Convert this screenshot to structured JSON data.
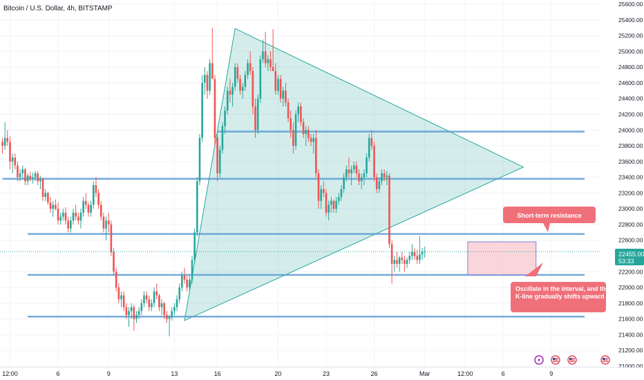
{
  "header": {
    "title": "Bitcoin / U.S. Dollar, 4h, BITSTAMP"
  },
  "price_badge": {
    "price": "22455.00",
    "countdown": "53:33"
  },
  "annotations": {
    "resistance_note": "Short-term resistance",
    "oscillation_note": "Oscillate in the interval, and the K-line gradually shifts upward"
  },
  "colors": {
    "up": "#26a69a",
    "down": "#ef5350",
    "level_line": "#5b9bd5",
    "triangle_fill": "#26a69a",
    "note_bg": "#f0707a",
    "range_fill": "#f8c8cf",
    "range_border": "#7e7be0",
    "badge": "#26a69a"
  },
  "event_icons": [
    "lightning-icon",
    "us-flag-icon",
    "us-flag-icon",
    "us-flag-icon"
  ],
  "chart_data": {
    "type": "candlestick",
    "symbol": "Bitcoin / U.S. Dollar",
    "interval": "4h",
    "exchange": "BITSTAMP",
    "ylim": [
      21000,
      25600
    ],
    "y_ticks": [
      21000,
      21200,
      21400,
      21600,
      21800,
      22000,
      22200,
      22400,
      22600,
      22800,
      23000,
      23200,
      23400,
      23600,
      23800,
      24000,
      24200,
      24400,
      24600,
      24800,
      25000,
      25200,
      25400,
      25600
    ],
    "x_ticks": [
      "12:00",
      "6",
      "9",
      "13",
      "16",
      "20",
      "23",
      "26",
      "Mar",
      "12:00",
      "6",
      "9"
    ],
    "x_tick_index": [
      3,
      22,
      42,
      68,
      85,
      109,
      128,
      147,
      167,
      183,
      198,
      217
    ],
    "candles_ohlc": [
      [
        23850,
        23900,
        23700,
        23800
      ],
      [
        23800,
        24100,
        23750,
        23900
      ],
      [
        23900,
        24000,
        23800,
        23850
      ],
      [
        23850,
        23920,
        23500,
        23600
      ],
      [
        23600,
        23700,
        23450,
        23650
      ],
      [
        23650,
        23700,
        23500,
        23550
      ],
      [
        23550,
        23600,
        23350,
        23400
      ],
      [
        23400,
        23500,
        23350,
        23450
      ],
      [
        23450,
        23550,
        23380,
        23500
      ],
      [
        23500,
        23520,
        23300,
        23350
      ],
      [
        23350,
        23450,
        23300,
        23420
      ],
      [
        23420,
        23470,
        23350,
        23380
      ],
      [
        23380,
        23460,
        23320,
        23400
      ],
      [
        23400,
        23480,
        23350,
        23450
      ],
      [
        23450,
        23480,
        23300,
        23350
      ],
      [
        23350,
        23420,
        23250,
        23380
      ],
      [
        23380,
        23400,
        23100,
        23150
      ],
      [
        23150,
        23250,
        23100,
        23200
      ],
      [
        23200,
        23220,
        23050,
        23080
      ],
      [
        23080,
        23150,
        22950,
        23000
      ],
      [
        23000,
        23100,
        22900,
        23050
      ],
      [
        23050,
        23120,
        22980,
        23000
      ],
      [
        23000,
        23080,
        22800,
        22850
      ],
      [
        22850,
        22950,
        22800,
        22900
      ],
      [
        22900,
        23000,
        22850,
        22950
      ],
      [
        22950,
        23020,
        22800,
        22850
      ],
      [
        22850,
        22900,
        22700,
        22750
      ],
      [
        22750,
        22900,
        22700,
        22850
      ],
      [
        22850,
        23000,
        22800,
        22950
      ],
      [
        22950,
        23050,
        22850,
        22900
      ],
      [
        22900,
        22950,
        22800,
        22850
      ],
      [
        22850,
        23000,
        22750,
        22950
      ],
      [
        22950,
        23150,
        22900,
        23100
      ],
      [
        23100,
        23200,
        23000,
        23050
      ],
      [
        23050,
        23080,
        22900,
        22950
      ],
      [
        22950,
        23100,
        22900,
        23050
      ],
      [
        23050,
        23350,
        23000,
        23300
      ],
      [
        23300,
        23400,
        23150,
        23200
      ],
      [
        23200,
        23250,
        23000,
        23050
      ],
      [
        23050,
        23100,
        22850,
        22900
      ],
      [
        22900,
        22950,
        22700,
        22750
      ],
      [
        22750,
        22900,
        22600,
        22850
      ],
      [
        22850,
        22950,
        22700,
        22800
      ],
      [
        22800,
        22850,
        22400,
        22450
      ],
      [
        22450,
        22500,
        22150,
        22200
      ],
      [
        22200,
        22250,
        21950,
        22000
      ],
      [
        22000,
        22050,
        21800,
        21850
      ],
      [
        21850,
        21950,
        21750,
        21900
      ],
      [
        21900,
        21950,
        21700,
        21750
      ],
      [
        21750,
        21800,
        21600,
        21650
      ],
      [
        21650,
        21750,
        21500,
        21700
      ],
      [
        21700,
        21800,
        21600,
        21750
      ],
      [
        21750,
        21780,
        21450,
        21600
      ],
      [
        21600,
        21700,
        21550,
        21650
      ],
      [
        21650,
        21750,
        21600,
        21700
      ],
      [
        21700,
        21850,
        21650,
        21800
      ],
      [
        21800,
        21950,
        21750,
        21900
      ],
      [
        21900,
        21950,
        21800,
        21850
      ],
      [
        21850,
        21900,
        21700,
        21750
      ],
      [
        21750,
        21850,
        21700,
        21800
      ],
      [
        21800,
        22000,
        21750,
        21950
      ],
      [
        21950,
        22050,
        21850,
        21900
      ],
      [
        21900,
        21920,
        21700,
        21750
      ],
      [
        21750,
        21850,
        21650,
        21800
      ],
      [
        21800,
        21820,
        21600,
        21650
      ],
      [
        21650,
        21700,
        21550,
        21600
      ],
      [
        21600,
        21650,
        21380,
        21620
      ],
      [
        21620,
        21750,
        21580,
        21700
      ],
      [
        21700,
        21800,
        21650,
        21750
      ],
      [
        21750,
        21900,
        21700,
        21850
      ],
      [
        21850,
        22050,
        21800,
        22000
      ],
      [
        22000,
        22200,
        21950,
        22150
      ],
      [
        22150,
        22250,
        22050,
        22100
      ],
      [
        22100,
        22150,
        21950,
        22000
      ],
      [
        22000,
        22150,
        21950,
        22100
      ],
      [
        22100,
        22400,
        22050,
        22350
      ],
      [
        22350,
        22750,
        22300,
        22700
      ],
      [
        22700,
        23400,
        22650,
        23350
      ],
      [
        23350,
        23950,
        23300,
        23900
      ],
      [
        23900,
        24700,
        23850,
        24600
      ],
      [
        24600,
        24800,
        24450,
        24700
      ],
      [
        24700,
        24750,
        24400,
        24500
      ],
      [
        24500,
        24900,
        24450,
        24850
      ],
      [
        24850,
        25300,
        24800,
        24650
      ],
      [
        24650,
        24700,
        23800,
        23900
      ],
      [
        23900,
        23950,
        23350,
        23450
      ],
      [
        23450,
        23800,
        23400,
        23750
      ],
      [
        23750,
        24100,
        23700,
        24050
      ],
      [
        24050,
        24300,
        23950,
        24250
      ],
      [
        24250,
        24550,
        24200,
        24500
      ],
      [
        24500,
        24650,
        24350,
        24450
      ],
      [
        24450,
        24600,
        24300,
        24550
      ],
      [
        24550,
        24850,
        24500,
        24800
      ],
      [
        24800,
        24850,
        24600,
        24650
      ],
      [
        24650,
        24700,
        24450,
        24500
      ],
      [
        24500,
        24600,
        24400,
        24550
      ],
      [
        24550,
        24750,
        24500,
        24700
      ],
      [
        24700,
        24900,
        24650,
        24850
      ],
      [
        24850,
        25000,
        24700,
        24750
      ],
      [
        24750,
        24800,
        24200,
        24300
      ],
      [
        24300,
        24400,
        23900,
        24000
      ],
      [
        24000,
        24450,
        23950,
        24400
      ],
      [
        24400,
        24950,
        24350,
        24900
      ],
      [
        24900,
        25150,
        24850,
        25000
      ],
      [
        25000,
        25250,
        24800,
        24850
      ],
      [
        24850,
        24950,
        24750,
        24900
      ],
      [
        24900,
        25000,
        24750,
        24800
      ],
      [
        24800,
        25280,
        24750,
        24750
      ],
      [
        24750,
        24850,
        24450,
        24500
      ],
      [
        24500,
        24700,
        24450,
        24650
      ],
      [
        24650,
        24700,
        24350,
        24400
      ],
      [
        24400,
        24550,
        24300,
        24500
      ],
      [
        24500,
        24600,
        24300,
        24350
      ],
      [
        24350,
        24400,
        24100,
        24150
      ],
      [
        24150,
        24250,
        23900,
        24000
      ],
      [
        24000,
        24100,
        23700,
        23800
      ],
      [
        23800,
        24250,
        23750,
        24200
      ],
      [
        24200,
        24350,
        24100,
        24300
      ],
      [
        24300,
        24350,
        24050,
        24100
      ],
      [
        24100,
        24150,
        23900,
        23950
      ],
      [
        23950,
        24050,
        23800,
        24000
      ],
      [
        24000,
        24050,
        23850,
        23900
      ],
      [
        23900,
        23950,
        23800,
        23850
      ],
      [
        23850,
        23950,
        23700,
        23900
      ],
      [
        23900,
        24000,
        23400,
        23450
      ],
      [
        23450,
        23500,
        23000,
        23100
      ],
      [
        23100,
        23300,
        23000,
        23250
      ],
      [
        23250,
        23350,
        23150,
        23200
      ],
      [
        23200,
        23250,
        22900,
        22950
      ],
      [
        22950,
        23100,
        22850,
        23050
      ],
      [
        23050,
        23150,
        22950,
        23100
      ],
      [
        23100,
        23120,
        22950,
        23000
      ],
      [
        23000,
        23150,
        22950,
        23100
      ],
      [
        23100,
        23200,
        23050,
        23150
      ],
      [
        23150,
        23300,
        23100,
        23250
      ],
      [
        23250,
        23450,
        23200,
        23400
      ],
      [
        23400,
        23550,
        23350,
        23500
      ],
      [
        23500,
        23650,
        23400,
        23450
      ],
      [
        23450,
        23550,
        23300,
        23500
      ],
      [
        23500,
        23600,
        23450,
        23550
      ],
      [
        23550,
        23600,
        23400,
        23450
      ],
      [
        23450,
        23500,
        23300,
        23350
      ],
      [
        23350,
        23450,
        23250,
        23400
      ],
      [
        23400,
        23500,
        23300,
        23450
      ],
      [
        23450,
        23700,
        23400,
        23650
      ],
      [
        23650,
        23950,
        23600,
        23900
      ],
      [
        23900,
        24000,
        23750,
        23800
      ],
      [
        23800,
        23850,
        23350,
        23400
      ],
      [
        23400,
        23450,
        23200,
        23250
      ],
      [
        23250,
        23400,
        23200,
        23350
      ],
      [
        23350,
        23500,
        23300,
        23450
      ],
      [
        23450,
        23500,
        23350,
        23400
      ],
      [
        23400,
        23480,
        23300,
        23420
      ],
      [
        23420,
        23450,
        22500,
        22550
      ],
      [
        22550,
        22600,
        22050,
        22300
      ],
      [
        22300,
        22400,
        22200,
        22350
      ],
      [
        22350,
        22450,
        22250,
        22300
      ],
      [
        22300,
        22400,
        22200,
        22380
      ],
      [
        22380,
        22450,
        22300,
        22350
      ],
      [
        22350,
        22400,
        22200,
        22300
      ],
      [
        22300,
        22380,
        22250,
        22350
      ],
      [
        22350,
        22450,
        22300,
        22400
      ],
      [
        22400,
        22550,
        22350,
        22450
      ],
      [
        22450,
        22500,
        22350,
        22400
      ],
      [
        22400,
        22480,
        22300,
        22350
      ],
      [
        22350,
        22650,
        22300,
        22420
      ],
      [
        22420,
        22500,
        22350,
        22450
      ],
      [
        22450,
        22520,
        22380,
        22455
      ]
    ],
    "horizontal_levels": [
      {
        "price": 23980,
        "from_index": 85,
        "to_index": 240
      },
      {
        "price": 23380,
        "from_index": 0,
        "to_index": 240
      },
      {
        "price": 22680,
        "from_index": 10,
        "to_index": 240
      },
      {
        "price": 22160,
        "from_index": 10,
        "to_index": 240
      },
      {
        "price": 21630,
        "from_index": 10,
        "to_index": 240
      }
    ],
    "triangle": {
      "points": [
        {
          "index": 72,
          "price": 21580
        },
        {
          "index": 92,
          "price": 25290
        },
        {
          "index": 206,
          "price": 23530
        }
      ]
    },
    "oscillation_range": {
      "from_index": 184,
      "to_index": 211,
      "low": 22160,
      "high": 22580
    },
    "current_price": 22455,
    "legend": "none",
    "grid": true
  }
}
